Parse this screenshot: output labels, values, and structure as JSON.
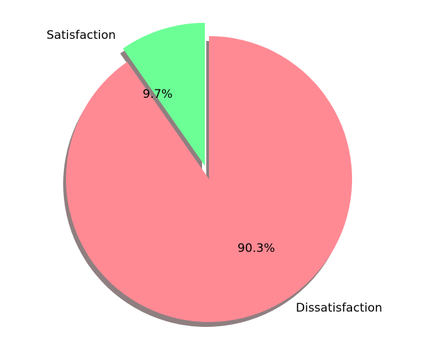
{
  "chart_data": {
    "type": "pie",
    "title": "",
    "categories": [
      "Satisfaction",
      "Dissatisfaction"
    ],
    "values": [
      9.7,
      90.3
    ],
    "labels": [
      "9.7%",
      "90.3%"
    ],
    "colors": [
      "#6cff96",
      "#ff8a94"
    ],
    "shadow_color": "#8f7f80",
    "exploded": [
      "Satisfaction"
    ],
    "shadow": true
  }
}
